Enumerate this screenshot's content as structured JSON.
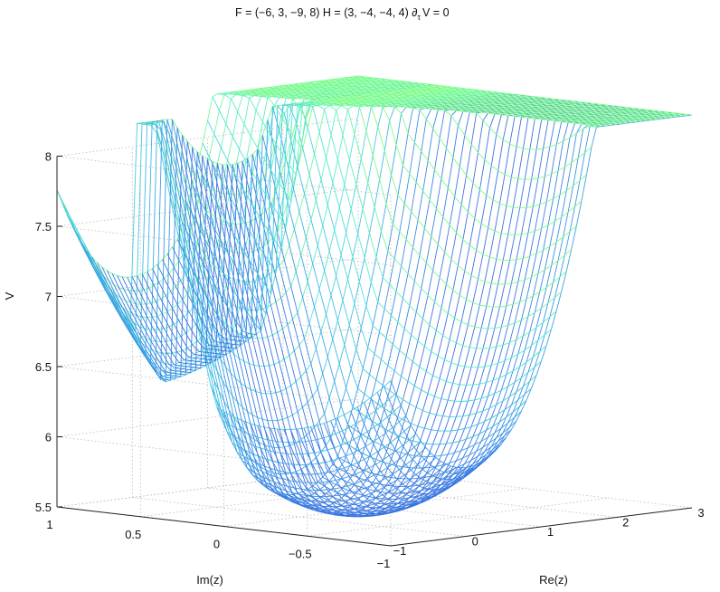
{
  "chart_data": {
    "type": "surface",
    "title": "F = (−6, 3, −9, 8) H = (3, −4, −4, 4) ∂",
    "title_subscript": "τ",
    "title_tail": "V = 0",
    "xlabel": "Re(z)",
    "ylabel": "Im(z)",
    "zlabel": "V",
    "xlim": [
      -1,
      3
    ],
    "ylim": [
      -1,
      1
    ],
    "zlim": [
      5.5,
      8
    ],
    "xticks": [
      "−1",
      "0",
      "1",
      "2",
      "3"
    ],
    "yticks": [
      "1",
      "0.5",
      "0",
      "−0.5",
      "−1"
    ],
    "zticks": [
      "5.5",
      "6",
      "6.5",
      "7",
      "7.5",
      "8"
    ],
    "grid": true,
    "colormap": [
      "#2a1fd0",
      "#3a5fe0",
      "#3fb5e6",
      "#52ecd6",
      "#7dfc8a"
    ],
    "surface_features": {
      "minimum": {
        "re": 0.0,
        "im": -0.3,
        "v": 5.55
      },
      "wall_at_im": 0.55,
      "plateau_left_v": 6.4,
      "max_clip_v": 8
    }
  }
}
